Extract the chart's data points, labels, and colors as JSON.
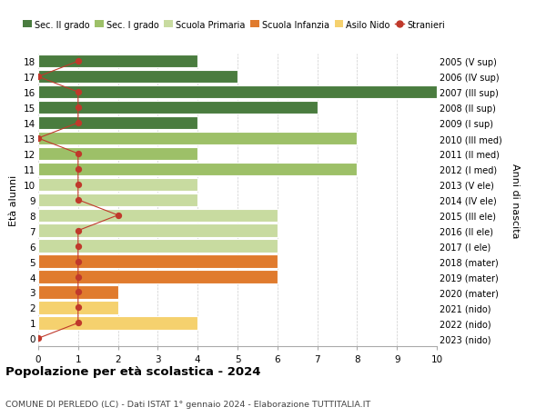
{
  "title": "Popolazione per età scolastica - 2024",
  "subtitle": "COMUNE DI PERLEDO (LC) - Dati ISTAT 1° gennaio 2024 - Elaborazione TUTTITALIA.IT",
  "ylabel_left": "Età alunni",
  "ylabel_right": "Anni di nascita",
  "ages": [
    0,
    1,
    2,
    3,
    4,
    5,
    6,
    7,
    8,
    9,
    10,
    11,
    12,
    13,
    14,
    15,
    16,
    17,
    18
  ],
  "right_labels": [
    "2023 (nido)",
    "2022 (nido)",
    "2021 (nido)",
    "2020 (mater)",
    "2019 (mater)",
    "2018 (mater)",
    "2017 (I ele)",
    "2016 (II ele)",
    "2015 (III ele)",
    "2014 (IV ele)",
    "2013 (V ele)",
    "2012 (I med)",
    "2011 (II med)",
    "2010 (III med)",
    "2009 (I sup)",
    "2008 (II sup)",
    "2007 (III sup)",
    "2006 (IV sup)",
    "2005 (V sup)"
  ],
  "bar_values": [
    0,
    4,
    2,
    2,
    6,
    6,
    6,
    6,
    6,
    4,
    4,
    8,
    4,
    8,
    4,
    7,
    10,
    5,
    4
  ],
  "bar_colors": [
    "#f5d16e",
    "#f5d16e",
    "#f5d16e",
    "#e07b2e",
    "#e07b2e",
    "#e07b2e",
    "#c8dba0",
    "#c8dba0",
    "#c8dba0",
    "#c8dba0",
    "#c8dba0",
    "#9dc068",
    "#9dc068",
    "#9dc068",
    "#4a7c3f",
    "#4a7c3f",
    "#4a7c3f",
    "#4a7c3f",
    "#4a7c3f"
  ],
  "stranieri_values": [
    0,
    1,
    1,
    1,
    1,
    1,
    1,
    1,
    2,
    1,
    1,
    1,
    1,
    0,
    1,
    1,
    1,
    0,
    1
  ],
  "legend_items": [
    {
      "label": "Sec. II grado",
      "color": "#4a7c3f"
    },
    {
      "label": "Sec. I grado",
      "color": "#9dc068"
    },
    {
      "label": "Scuola Primaria",
      "color": "#c8dba0"
    },
    {
      "label": "Scuola Infanzia",
      "color": "#e07b2e"
    },
    {
      "label": "Asilo Nido",
      "color": "#f5d16e"
    },
    {
      "label": "Stranieri",
      "color": "#c0392b"
    }
  ],
  "background_color": "#ffffff",
  "bar_height": 0.85,
  "grid_color": "#cccccc"
}
